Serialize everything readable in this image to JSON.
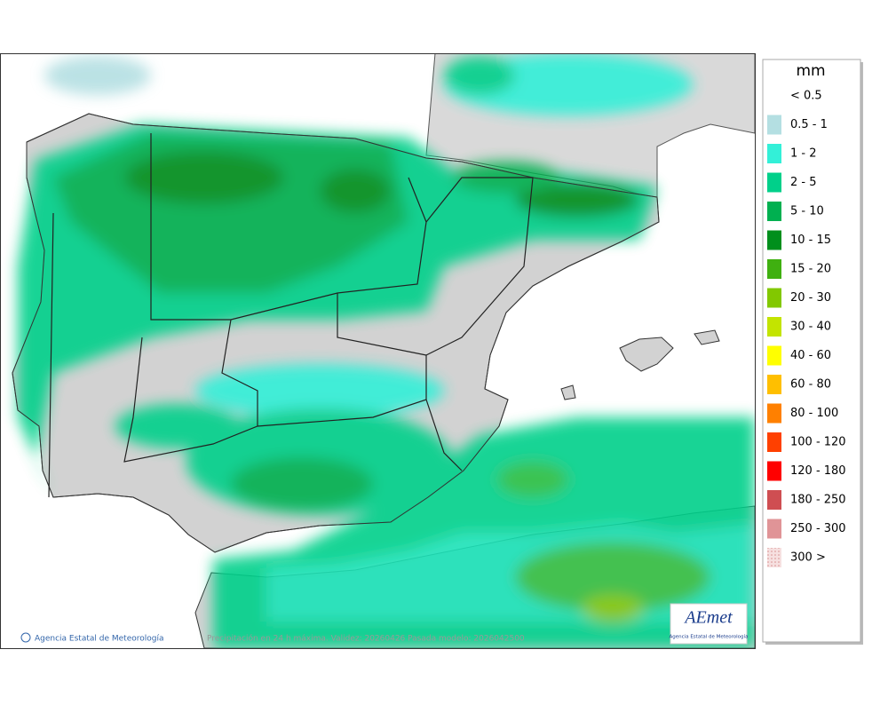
{
  "legend": {
    "title": "mm",
    "items": [
      {
        "label": "< 0.5",
        "color": "#ffffff"
      },
      {
        "label": "0.5 - 1",
        "color": "#b4dfe2"
      },
      {
        "label": "1 - 2",
        "color": "#33f0d8"
      },
      {
        "label": "2 - 5",
        "color": "#00d08a"
      },
      {
        "label": "5 - 10",
        "color": "#00b050"
      },
      {
        "label": "10 - 15",
        "color": "#008f1c"
      },
      {
        "label": "15 - 20",
        "color": "#3fb010"
      },
      {
        "label": "20 - 30",
        "color": "#82c800"
      },
      {
        "label": "30 - 40",
        "color": "#c3e400"
      },
      {
        "label": "40 - 60",
        "color": "#ffff00"
      },
      {
        "label": "60 - 80",
        "color": "#ffbf00"
      },
      {
        "label": "80 - 100",
        "color": "#ff8000"
      },
      {
        "label": "100 - 120",
        "color": "#ff4000"
      },
      {
        "label": "120 - 180",
        "color": "#ff0000"
      },
      {
        "label": "180 - 250",
        "color": "#cf4e52"
      },
      {
        "label": "250 - 300",
        "color": "#e09497"
      },
      {
        "label": "300 >",
        "color": "#f2cccc"
      }
    ]
  },
  "footer": {
    "credit": "Agencia Estatal de Meteorología",
    "caption": "Precipitación en 24 h máxima. Validez: 20260426 Pasada modelo: 2026042500"
  },
  "logo": {
    "name": "AEmet",
    "subtitle": "Agencia Estatal de Meteorología"
  }
}
